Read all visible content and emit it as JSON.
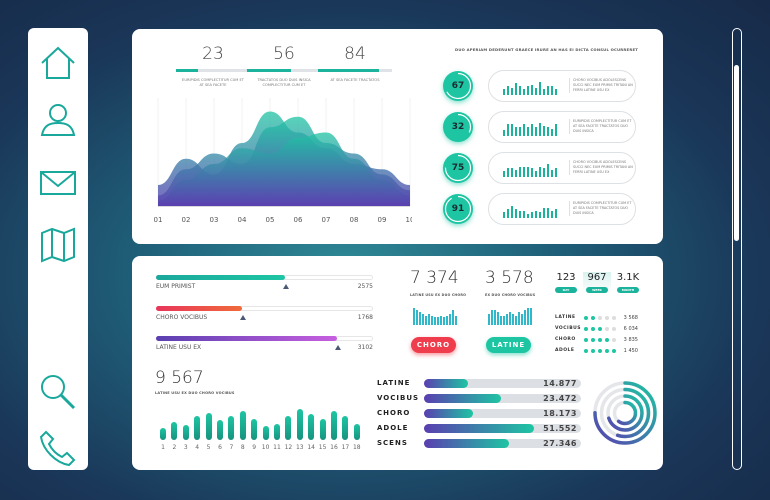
{
  "sidebar": {
    "icons": [
      "home-icon",
      "user-icon",
      "mail-icon",
      "map-icon",
      "search-icon",
      "phone-icon"
    ]
  },
  "top_stats": [
    {
      "value": "23",
      "progress": 0.3,
      "caption": "EURIPIDIS COMPLECTITUR CUM ET AT SEA FACETE"
    },
    {
      "value": "56",
      "progress": 0.6,
      "caption": "TRACTATOS DUO DUIS INSICA COMPLECTITUR CUM ET"
    },
    {
      "value": "84",
      "progress": 0.82,
      "caption": "AT SEA FACETE TRACTATOS"
    }
  ],
  "headline": "DUO APERIAM DEDERUNT GRAECE IRURE AN HAS EI DICTA CONSUL OCURRERET",
  "area_chart": {
    "type": "area",
    "x_labels": [
      "01",
      "02",
      "03",
      "04",
      "05",
      "06",
      "07",
      "08",
      "09",
      "10"
    ],
    "series": [
      {
        "values": [
          20,
          45,
          30,
          60,
          90,
          70,
          55,
          40,
          35,
          20
        ]
      },
      {
        "values": [
          10,
          35,
          50,
          40,
          75,
          85,
          60,
          50,
          30,
          15
        ]
      },
      {
        "values": [
          5,
          25,
          40,
          55,
          50,
          65,
          70,
          45,
          25,
          10
        ]
      }
    ],
    "colors": [
      "#1ec5a3",
      "#5a3fb0"
    ]
  },
  "rings": [
    {
      "value": "67",
      "progress": 0.67,
      "text": "CHORO VOCIBUS ADOLESCENS SUCCI NEC EUM PRIMIS TRITANI AN FERRI LATINE USU EX",
      "bars": [
        4,
        6,
        5,
        8,
        6,
        4,
        6,
        7,
        5,
        9,
        4,
        6,
        6,
        4
      ]
    },
    {
      "value": "32",
      "progress": 0.32,
      "text": "EURIPIDIS COMPLECTITUR CUM ET AT SEA FACETE TRACTATOS DUO DUIS INSICA",
      "bars": [
        4,
        8,
        8,
        6,
        6,
        8,
        6,
        8,
        6,
        9,
        7,
        6,
        5,
        8
      ]
    },
    {
      "value": "75",
      "progress": 0.75,
      "text": "CHORO VOCIBUS ADOLESCENS SUCCI NEC EUM PRIMIS TRITANI AN FERRI LATINE USU EX",
      "bars": [
        4,
        6,
        6,
        5,
        7,
        7,
        7,
        6,
        4,
        7,
        6,
        9,
        5,
        6
      ]
    },
    {
      "value": "91",
      "progress": 0.91,
      "text": "EURIPIDIS COMPLECTITUR CUM ET AT SEA FACETE TRACTATOS DUO DUIS INSICA",
      "bars": [
        4,
        6,
        8,
        6,
        5,
        5,
        3,
        4,
        5,
        4,
        7,
        7,
        5,
        6
      ]
    }
  ],
  "progress_bars": [
    {
      "label": "EUM PRIMIST",
      "value": "2575",
      "fill": 0.6,
      "marker": 0.6,
      "color": "linear-gradient(90deg,#1aa89c,#1ec5a3)"
    },
    {
      "label": "CHORO VOCIBUS",
      "value": "1768",
      "fill": 0.4,
      "marker": 0.4,
      "color": "linear-gradient(90deg,#e8365a,#f06a3a)"
    },
    {
      "label": "LATINE USU EX",
      "value": "3102",
      "fill": 0.84,
      "marker": 0.84,
      "color": "linear-gradient(90deg,#5a3fb0,#c75fe0)"
    }
  ],
  "kpis": [
    {
      "value": "7 374",
      "caption": "LATINE USU EX DUO CHORO",
      "button": "CHORO",
      "color": "#ef3d4d",
      "bars": [
        9,
        8,
        7,
        6,
        5,
        6,
        5,
        4,
        4,
        5,
        4,
        5,
        6,
        8,
        5
      ]
    },
    {
      "value": "3 578",
      "caption": "EX DUO CHORO VOCIBUS",
      "button": "LATINE",
      "color": "#1ec5a3",
      "bars": [
        6,
        8,
        8,
        7,
        5,
        5,
        6,
        7,
        6,
        5,
        7,
        6,
        8,
        9,
        9
      ]
    }
  ],
  "periods": [
    {
      "value": "123",
      "button": "DAY"
    },
    {
      "value": "967",
      "button": "WEEK"
    },
    {
      "value": "3.1K",
      "button": "MONTH"
    }
  ],
  "ratings": [
    {
      "label": "LATINE",
      "stars": 2,
      "value": "3 568"
    },
    {
      "label": "VOCIBUS",
      "stars": 3,
      "value": "6 034"
    },
    {
      "label": "CHORO",
      "stars": 4,
      "value": "3 835"
    },
    {
      "label": "ADOLE",
      "stars": 5,
      "value": "1 450"
    }
  ],
  "column_chart": {
    "type": "bar",
    "value": "9 567",
    "caption": "LATINE USU EX DUO CHORO VOCIBUS",
    "categories": [
      "1",
      "2",
      "3",
      "4",
      "5",
      "6",
      "7",
      "8",
      "9",
      "10",
      "11",
      "12",
      "13",
      "14",
      "15",
      "16",
      "17",
      "18"
    ],
    "values": [
      11,
      16,
      13,
      21,
      24,
      18,
      21,
      26,
      19,
      12,
      14,
      21,
      27,
      23,
      19,
      26,
      21,
      14
    ]
  },
  "horizontal_bars": {
    "type": "bar",
    "items": [
      {
        "label": "LATINE",
        "value": "14.877",
        "fill": 0.28
      },
      {
        "label": "VOCIBUS",
        "value": "23.472",
        "fill": 0.49
      },
      {
        "label": "CHORO",
        "value": "18.173",
        "fill": 0.31
      },
      {
        "label": "ADOLE",
        "value": "51.552",
        "fill": 0.7
      },
      {
        "label": "SCENS",
        "value": "27.346",
        "fill": 0.54
      }
    ]
  },
  "radial": {
    "fractions": [
      0.75,
      0.55,
      0.7,
      0.6
    ]
  }
}
